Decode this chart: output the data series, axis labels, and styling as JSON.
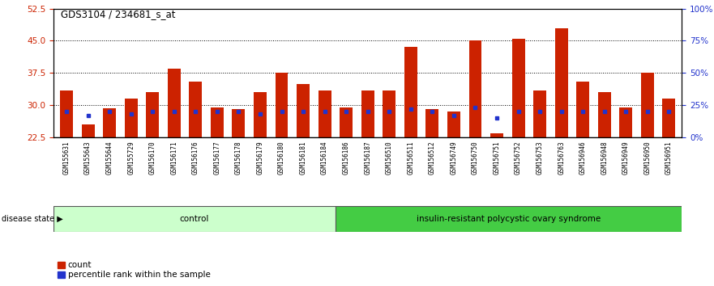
{
  "title": "GDS3104 / 234681_s_at",
  "samples": [
    "GSM155631",
    "GSM155643",
    "GSM155644",
    "GSM155729",
    "GSM156170",
    "GSM156171",
    "GSM156176",
    "GSM156177",
    "GSM156178",
    "GSM156179",
    "GSM156180",
    "GSM156181",
    "GSM156184",
    "GSM156186",
    "GSM156187",
    "GSM156510",
    "GSM156511",
    "GSM156512",
    "GSM156749",
    "GSM156750",
    "GSM156751",
    "GSM156752",
    "GSM156753",
    "GSM156763",
    "GSM156946",
    "GSM156948",
    "GSM156949",
    "GSM156950",
    "GSM156951"
  ],
  "counts": [
    33.5,
    25.5,
    29.3,
    31.5,
    33.0,
    38.5,
    35.5,
    29.5,
    29.0,
    33.0,
    37.5,
    35.0,
    33.5,
    29.5,
    33.5,
    33.5,
    43.5,
    29.0,
    28.5,
    45.0,
    23.5,
    45.5,
    33.5,
    48.0,
    35.5,
    33.0,
    29.5,
    37.5,
    31.5
  ],
  "percentiles": [
    28.5,
    27.5,
    28.5,
    28.0,
    28.5,
    28.5,
    28.5,
    28.5,
    28.5,
    28.0,
    28.5,
    28.5,
    28.5,
    28.5,
    28.5,
    28.5,
    29.0,
    28.5,
    27.5,
    29.5,
    27.0,
    28.5,
    28.5,
    28.5,
    28.5,
    28.5,
    28.5,
    28.5,
    28.5
  ],
  "group1_label": "control",
  "group2_label": "insulin-resistant polycystic ovary syndrome",
  "group1_count": 13,
  "group2_count": 16,
  "bar_color": "#cc2200",
  "percentile_color": "#2233cc",
  "ylim_left": [
    22.5,
    52.5
  ],
  "yticks_left": [
    22.5,
    30.0,
    37.5,
    45.0,
    52.5
  ],
  "yticks_right": [
    0,
    25,
    50,
    75,
    100
  ],
  "group1_bg": "#ccffcc",
  "group2_bg": "#44cc44",
  "xtick_bg": "#cccccc",
  "bar_width": 0.6
}
